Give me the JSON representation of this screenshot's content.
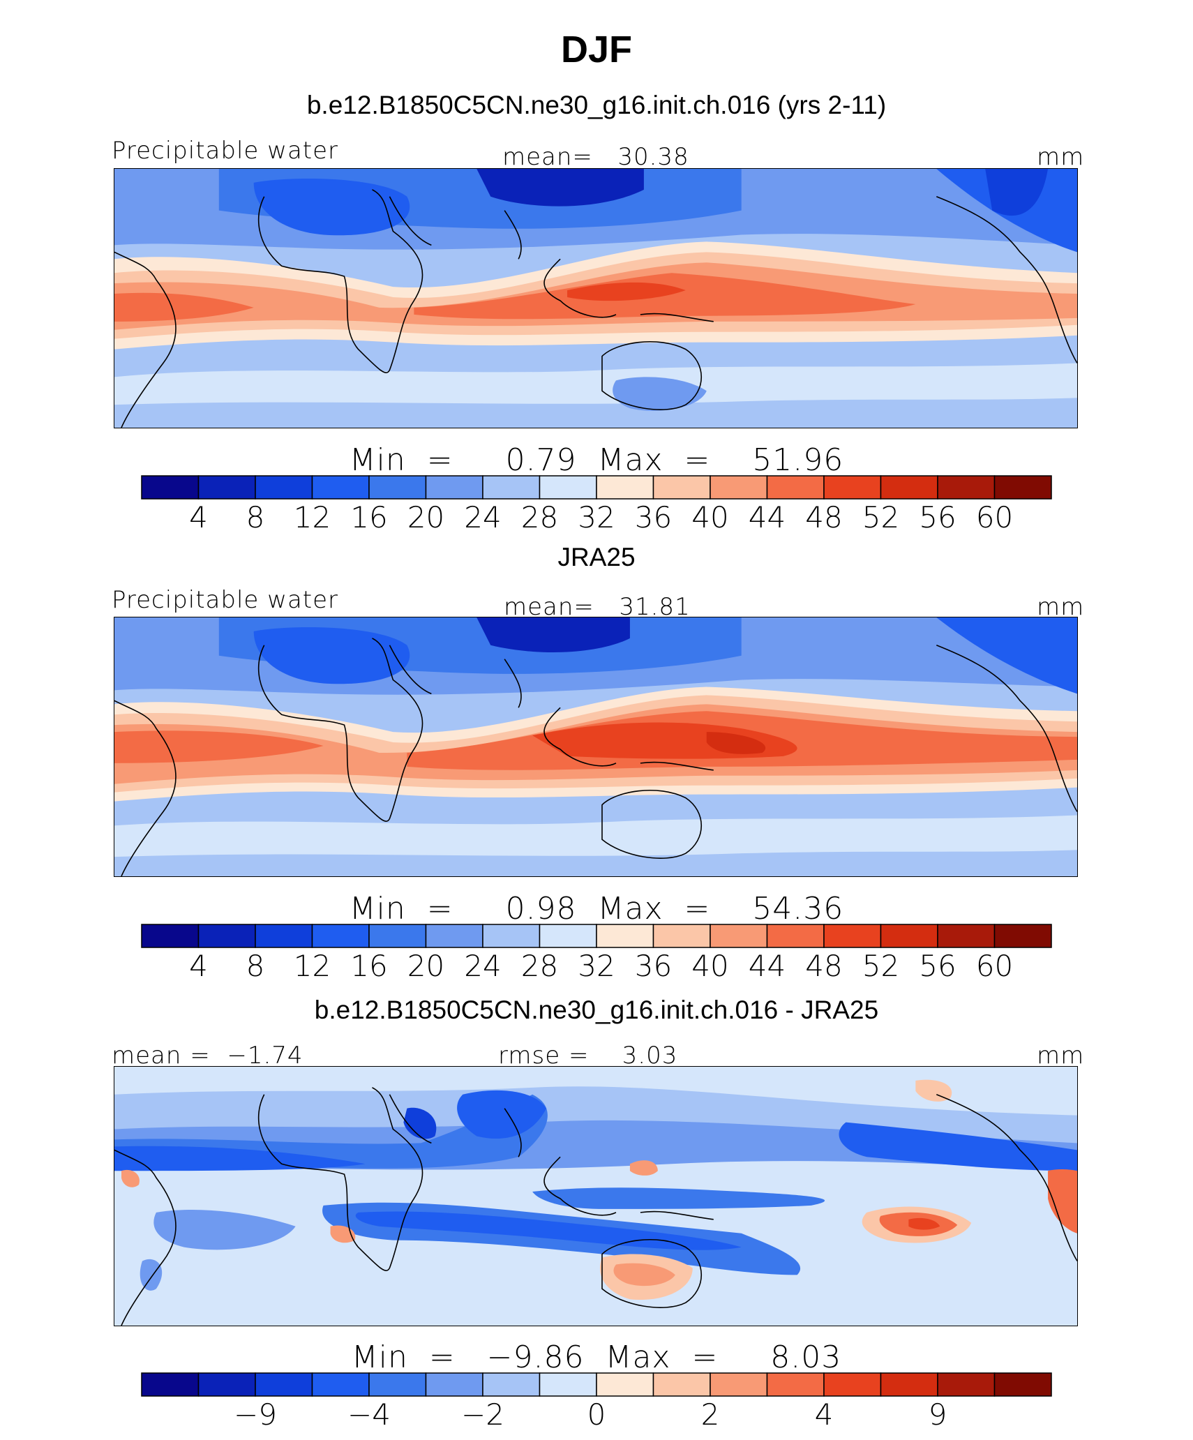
{
  "figure": {
    "title": "DJF"
  },
  "palette": {
    "full": [
      "#08078c",
      "#0a22b8",
      "#0f3fdb",
      "#1f5df0",
      "#3b78ec",
      "#6f9af0",
      "#a6c4f6",
      "#d5e6fb",
      "#fde8d6",
      "#fbc6a8",
      "#f89a75",
      "#f36b45",
      "#e8421f",
      "#d42d10",
      "#a81a0a",
      "#800b02"
    ],
    "diff": [
      "#08078c",
      "#0a22b8",
      "#0f3fdb",
      "#1f5df0",
      "#3b78ec",
      "#6f9af0",
      "#a6c4f6",
      "#d5e6fb",
      "#fde8d6",
      "#fbc6a8",
      "#f89a75",
      "#f36b45",
      "#e8421f",
      "#d42d10",
      "#a81a0a",
      "#800b02"
    ]
  },
  "chart_data": [
    {
      "type": "heatmap",
      "title": "b.e12.B1850C5CN.ne30_g16.init.ch.016 (yrs 2-11)",
      "variable": "Precipitable water",
      "mean_label": "mean=",
      "mean_value": "30.38",
      "units": "mm",
      "min_label": "Min  =",
      "min_value": "0.79",
      "max_label": "Max  =",
      "max_value": "51.96",
      "colorbar_levels": [
        "4",
        "8",
        "12",
        "16",
        "20",
        "24",
        "28",
        "32",
        "36",
        "40",
        "44",
        "48",
        "52",
        "56",
        "60"
      ],
      "levels": [
        4,
        8,
        12,
        16,
        20,
        24,
        28,
        32,
        36,
        40,
        44,
        48,
        52,
        56,
        60
      ],
      "palette": "full"
    },
    {
      "type": "heatmap",
      "title": "JRA25",
      "variable": "Precipitable water",
      "mean_label": "mean=",
      "mean_value": "31.81",
      "units": "mm",
      "min_label": "Min  =",
      "min_value": "0.98",
      "max_label": "Max  =",
      "max_value": "54.36",
      "colorbar_levels": [
        "4",
        "8",
        "12",
        "16",
        "20",
        "24",
        "28",
        "32",
        "36",
        "40",
        "44",
        "48",
        "52",
        "56",
        "60"
      ],
      "levels": [
        4,
        8,
        12,
        16,
        20,
        24,
        28,
        32,
        36,
        40,
        44,
        48,
        52,
        56,
        60
      ],
      "palette": "full"
    },
    {
      "type": "heatmap",
      "title": "b.e12.B1850C5CN.ne30_g16.init.ch.016 - JRA25",
      "mean_label": "mean  =",
      "mean_value": "−1.74",
      "rmse_label": "rmse  =",
      "rmse_value": "3.03",
      "units": "mm",
      "min_label": "Min  =",
      "min_value": "−9.86",
      "max_label": "Max  =",
      "max_value": "8.03",
      "colorbar_tick_labels": [
        "−9",
        "−4",
        "−2",
        "0",
        "2",
        "4",
        "9"
      ],
      "tick_boundary_index": [
        1,
        3,
        5,
        7,
        9,
        11,
        13
      ],
      "palette": "diff"
    }
  ]
}
